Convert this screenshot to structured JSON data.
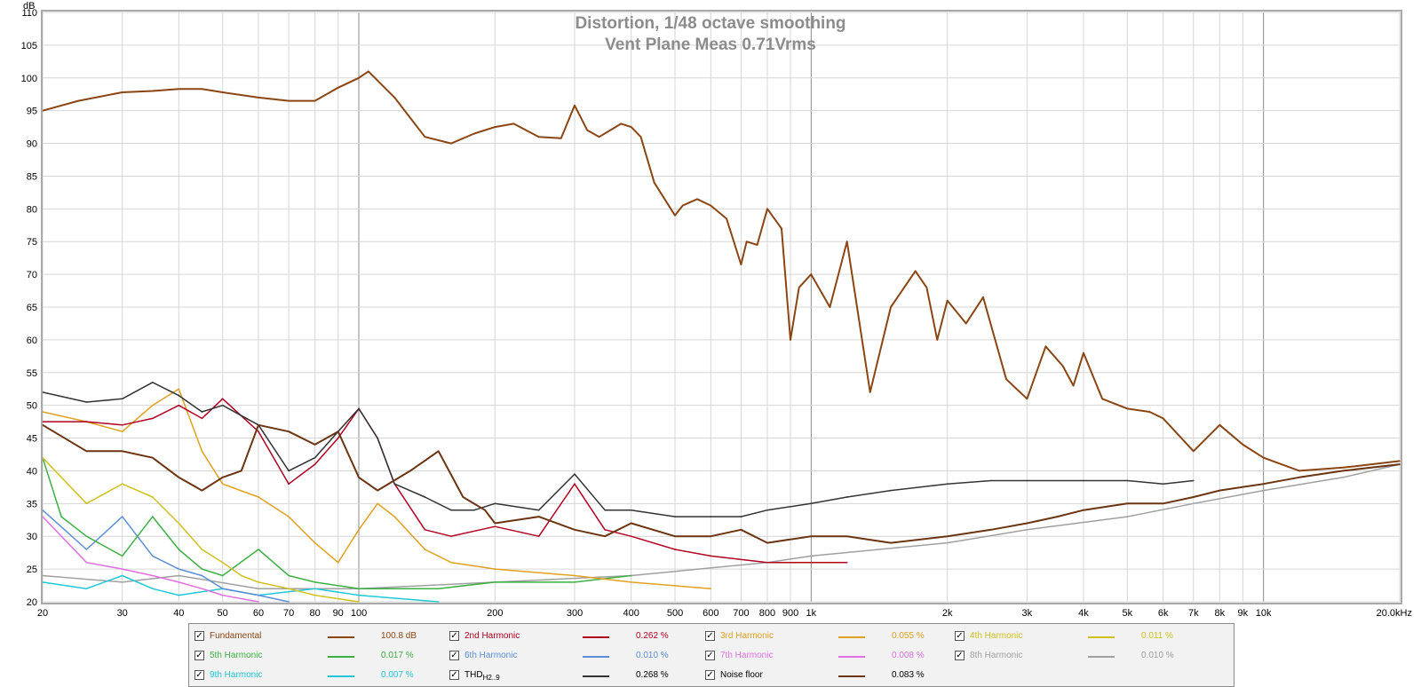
{
  "chart_data": {
    "type": "line",
    "title": "Distortion, 1/48 octave smoothing",
    "subtitle": "Vent Plane Meas 0.71Vrms",
    "ylabel": "dB",
    "xscale": "log",
    "xlim": [
      20,
      20000
    ],
    "ylim": [
      20,
      110
    ],
    "grid": true,
    "x_ticks": [
      "20",
      "30",
      "40",
      "50",
      "60",
      "70",
      "80",
      "90",
      "100",
      "200",
      "300",
      "400",
      "500",
      "600",
      "700",
      "800",
      "900",
      "1k",
      "2k",
      "3k",
      "4k",
      "5k",
      "6k",
      "7k",
      "8k",
      "9k",
      "10k",
      "20.0kHz"
    ],
    "y_ticks": [
      "20",
      "25",
      "30",
      "35",
      "40",
      "45",
      "50",
      "55",
      "60",
      "65",
      "70",
      "75",
      "80",
      "85",
      "90",
      "95",
      "100",
      "105",
      "110"
    ],
    "series": [
      {
        "name": "Fundamental",
        "color": "#8b4513",
        "x": [
          20,
          24,
          30,
          35,
          40,
          45,
          50,
          60,
          70,
          80,
          90,
          100,
          105,
          120,
          140,
          160,
          180,
          200,
          220,
          250,
          280,
          300,
          320,
          340,
          380,
          400,
          420,
          450,
          500,
          520,
          560,
          600,
          650,
          700,
          720,
          760,
          800,
          860,
          900,
          940,
          1000,
          1100,
          1200,
          1350,
          1500,
          1700,
          1800,
          1900,
          2000,
          2200,
          2400,
          2700,
          3000,
          3300,
          3600,
          3800,
          4000,
          4400,
          5000,
          5600,
          6000,
          7000,
          8000,
          9000,
          10000,
          12000,
          15000,
          20000
        ],
        "y": [
          95,
          96.5,
          97.8,
          98,
          98.3,
          98.3,
          97.8,
          97,
          96.5,
          96.5,
          98.5,
          100,
          101,
          97,
          91,
          90,
          91.5,
          92.5,
          93,
          91,
          90.8,
          95.8,
          92,
          91,
          93,
          92.5,
          91,
          84,
          79,
          80.5,
          81.5,
          80.5,
          78.5,
          71.5,
          75,
          74.5,
          80,
          77,
          60,
          68,
          70,
          65,
          75,
          52,
          65,
          70.5,
          68,
          60,
          66,
          62.5,
          66.5,
          54,
          51,
          59,
          56,
          53,
          58,
          51,
          49.5,
          49,
          48,
          43,
          47,
          44,
          42,
          40,
          40.5,
          41.5
        ]
      },
      {
        "name": "2nd Harmonic",
        "color": "#b00020",
        "x": [
          20,
          25,
          30,
          35,
          40,
          45,
          50,
          60,
          70,
          80,
          90,
          100,
          110,
          120,
          140,
          160,
          200,
          250,
          300,
          350,
          400,
          500,
          600,
          800,
          1000,
          1200
        ],
        "y": [
          47.5,
          47.5,
          47,
          48,
          50,
          48,
          51,
          46,
          38,
          41,
          45,
          49.5,
          45,
          38,
          31,
          30,
          31.5,
          30,
          38,
          31,
          30,
          28,
          27,
          26,
          26,
          26
        ]
      },
      {
        "name": "3rd Harmonic",
        "color": "#e0a020",
        "x": [
          20,
          25,
          30,
          35,
          40,
          45,
          50,
          60,
          70,
          80,
          90,
          100,
          110,
          120,
          140,
          160,
          200,
          300,
          400,
          600
        ],
        "y": [
          49,
          47.5,
          46,
          50,
          52.5,
          43,
          38,
          36,
          33,
          29,
          26,
          31,
          35,
          33,
          28,
          26,
          25,
          24,
          23,
          22
        ]
      },
      {
        "name": "4th Harmonic",
        "color": "#d0c020",
        "x": [
          20,
          25,
          30,
          35,
          40,
          45,
          50,
          55,
          60,
          70,
          80,
          100
        ],
        "y": [
          42,
          35,
          38,
          36,
          32,
          28,
          26,
          24,
          23,
          22,
          21,
          20
        ]
      },
      {
        "name": "5th Harmonic",
        "color": "#3cb043",
        "x": [
          20,
          22,
          25,
          30,
          35,
          40,
          45,
          50,
          60,
          70,
          80,
          100,
          150,
          200,
          300,
          400
        ],
        "y": [
          42,
          33,
          30,
          27,
          33,
          28,
          25,
          24,
          28,
          24,
          23,
          22,
          22,
          23,
          23,
          24
        ]
      },
      {
        "name": "6th Harmonic",
        "color": "#5b8ed6",
        "x": [
          20,
          25,
          30,
          35,
          40,
          45,
          50,
          60,
          70
        ],
        "y": [
          34,
          28,
          33,
          27,
          25,
          24,
          22,
          21,
          20
        ]
      },
      {
        "name": "7th Harmonic",
        "color": "#e070e0",
        "x": [
          20,
          25,
          30,
          35,
          40,
          45,
          50,
          60
        ],
        "y": [
          33,
          26,
          25,
          24,
          23,
          22,
          21,
          20
        ]
      },
      {
        "name": "8th Harmonic",
        "color": "#a0a0a0",
        "x": [
          20,
          30,
          40,
          60,
          100,
          200,
          400,
          800,
          1000,
          2000,
          3000,
          5000,
          7000,
          10000,
          15000,
          20000
        ],
        "y": [
          24,
          23,
          24,
          22,
          22,
          23,
          24,
          26,
          27,
          29,
          31,
          33,
          35,
          37,
          39,
          41
        ]
      },
      {
        "name": "9th Harmonic",
        "color": "#20c8d8",
        "x": [
          20,
          25,
          30,
          35,
          40,
          50,
          60,
          80,
          100,
          150
        ],
        "y": [
          23,
          22,
          24,
          22,
          21,
          22,
          21,
          22,
          21,
          20
        ]
      },
      {
        "name": "THDH2..9",
        "color": "#333333",
        "x": [
          20,
          25,
          30,
          35,
          40,
          45,
          50,
          60,
          70,
          80,
          90,
          100,
          110,
          120,
          140,
          160,
          180,
          200,
          250,
          300,
          350,
          400,
          500,
          600,
          700,
          800,
          1000,
          1200,
          1500,
          2000,
          2500,
          3000,
          4000,
          5000,
          6000,
          7000
        ],
        "y": [
          52,
          50.5,
          51,
          53.5,
          51.5,
          49,
          50,
          47,
          40,
          42,
          46,
          49.5,
          45,
          38,
          36,
          34,
          34,
          35,
          34,
          39.5,
          34,
          34,
          33,
          33,
          33,
          34,
          35,
          36,
          37,
          38,
          38.5,
          38.5,
          38.5,
          38.5,
          38,
          38.5
        ]
      },
      {
        "name": "Noise floor",
        "color": "#6b3512",
        "x": [
          20,
          25,
          30,
          35,
          40,
          45,
          50,
          55,
          60,
          70,
          80,
          90,
          100,
          110,
          130,
          150,
          170,
          190,
          200,
          250,
          300,
          350,
          400,
          500,
          600,
          700,
          800,
          1000,
          1200,
          1500,
          2000,
          2500,
          3000,
          3500,
          4000,
          5000,
          6000,
          7000,
          8000,
          10000,
          12000,
          15000,
          20000
        ],
        "y": [
          47,
          43,
          43,
          42,
          39,
          37,
          39,
          40,
          47,
          46,
          44,
          46,
          39,
          37,
          40,
          43,
          36,
          34,
          32,
          33,
          31,
          30,
          32,
          30,
          30,
          31,
          29,
          30,
          30,
          29,
          30,
          31,
          32,
          33,
          34,
          35,
          35,
          36,
          37,
          38,
          39,
          40,
          41
        ]
      }
    ]
  },
  "legend": {
    "items": [
      {
        "name": "Fundamental",
        "value": "100.8 dB",
        "color": "#8b4513"
      },
      {
        "name": "2nd Harmonic",
        "value": "0.262 %",
        "color": "#b00020"
      },
      {
        "name": "3rd Harmonic",
        "value": "0.055 %",
        "color": "#e0a020"
      },
      {
        "name": "4th Harmonic",
        "value": "0.011 %",
        "color": "#d0c020"
      },
      {
        "name": "5th Harmonic",
        "value": "0.017 %",
        "color": "#3cb043"
      },
      {
        "name": "6th Harmonic",
        "value": "0.010 %",
        "color": "#5b8ed6"
      },
      {
        "name": "7th Harmonic",
        "value": "0.008 %",
        "color": "#e070e0"
      },
      {
        "name": "8th Harmonic",
        "value": "0.010 %",
        "color": "#a0a0a0"
      },
      {
        "name": "9th Harmonic",
        "value": "0.007 %",
        "color": "#20c8d8"
      },
      {
        "name": "THD",
        "sub": "H2..9",
        "value": "0.268 %",
        "color": "#333333"
      },
      {
        "name": "Noise floor",
        "value": "0.083 %",
        "color": "#6b3512"
      }
    ]
  }
}
